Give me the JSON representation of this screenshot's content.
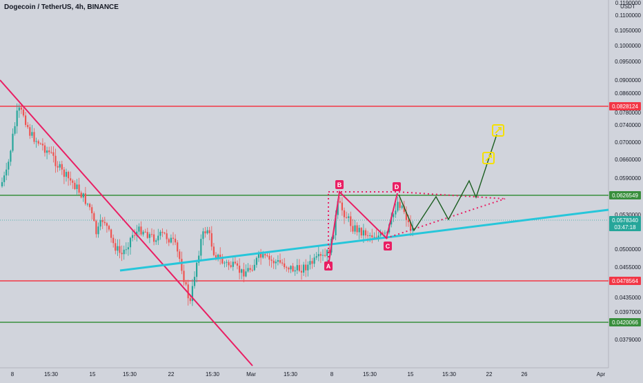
{
  "header": {
    "title": "Dogecoin / TetherUS, 4h, BINANCE",
    "currency": "USDT"
  },
  "chart_data": {
    "type": "candlestick",
    "y_ticks": [
      "0.1190000",
      "0.1100000",
      "0.1050000",
      "0.1000000",
      "0.0950000",
      "0.0900000",
      "0.0860000",
      "0.0780000",
      "0.0740000",
      "0.0700000",
      "0.0660000",
      "0.0590000",
      "0.0530000",
      "0.0500000",
      "0.0455000",
      "0.0435000",
      "0.0397000",
      "0.0379000"
    ],
    "x_ticks": [
      "8",
      "15:30",
      "15",
      "15:30",
      "22",
      "15:30",
      "Mar",
      "15:30",
      "8",
      "15:30",
      "15",
      "15:30",
      "22",
      "26",
      "Apr"
    ],
    "price_tags": [
      {
        "label": "0.0828124",
        "color": "#f23645"
      },
      {
        "label": "0.0626549",
        "color": "#388e3c"
      },
      {
        "label": "0.0578340",
        "color": "#26a69a"
      },
      {
        "label": "03:47:18",
        "color": "#26a69a"
      },
      {
        "label": "0.0478564",
        "color": "#f23645"
      },
      {
        "label": "0.0420066",
        "color": "#388e3c"
      }
    ],
    "horizontal_levels": [
      {
        "value": 0.0828124,
        "color": "#f23645"
      },
      {
        "value": 0.0626549,
        "color": "#388e3c"
      },
      {
        "value": 0.0478564,
        "color": "#f23645"
      },
      {
        "value": 0.0420066,
        "color": "#388e3c"
      }
    ],
    "pattern_labels": [
      "A",
      "B",
      "C",
      "D"
    ],
    "colors": {
      "up": "#26a69a",
      "down": "#ef5350",
      "bg": "#d1d4dc",
      "trend_down": "#e91e63",
      "trend_up": "#26c6da",
      "projection": "#1b5e20",
      "target": "#f5e000"
    }
  }
}
